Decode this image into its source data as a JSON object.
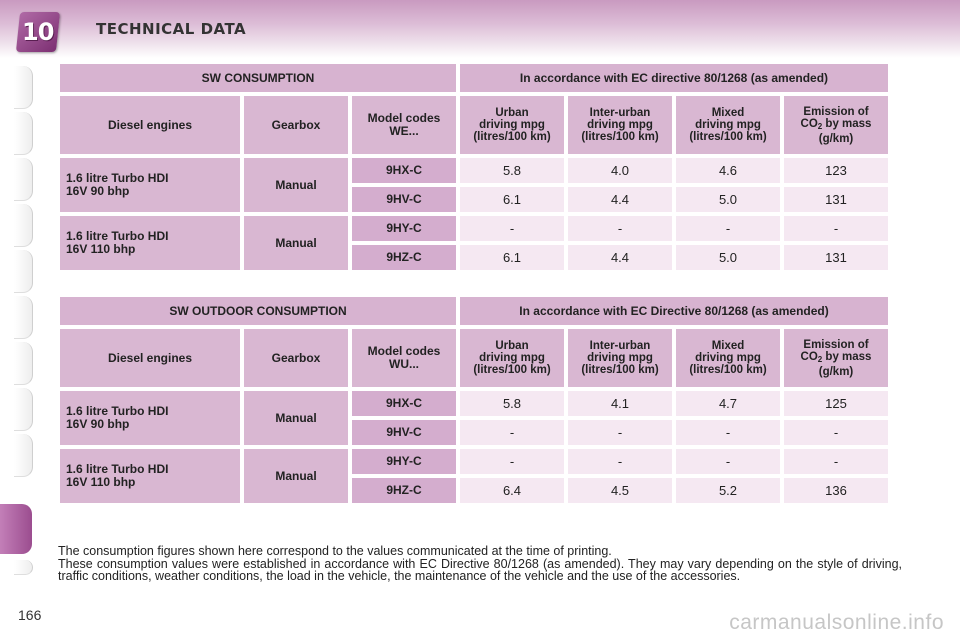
{
  "header": {
    "chapter": "10",
    "title": "TECHNICAL DATA"
  },
  "tables": [
    {
      "title": "SW CONSUMPTION",
      "directive": "In accordance with EC directive 80/1268 (as amended)",
      "columns": {
        "engine": "Diesel engines",
        "gearbox": "Gearbox",
        "codes": "Model codes WE...",
        "urban": [
          "Urban",
          "driving mpg",
          "(litres/100 km)"
        ],
        "inter": [
          "Inter-urban",
          "driving mpg",
          "(litres/100 km)"
        ],
        "mixed": [
          "Mixed",
          "driving mpg",
          "(litres/100 km)"
        ],
        "co2": [
          "Emission of",
          "CO",
          "2",
          " by mass",
          "(g/km)"
        ]
      },
      "groups": [
        {
          "engine": [
            "1.6 litre Turbo HDI",
            "16V 90 bhp"
          ],
          "gearbox": "Manual",
          "rows": [
            {
              "code": "9HX-C",
              "urban": "5.8",
              "inter": "4.0",
              "mixed": "4.6",
              "co2": "123"
            },
            {
              "code": "9HV-C",
              "urban": "6.1",
              "inter": "4.4",
              "mixed": "5.0",
              "co2": "131"
            }
          ]
        },
        {
          "engine": [
            "1.6 litre Turbo HDI",
            "16V 110 bhp"
          ],
          "gearbox": "Manual",
          "rows": [
            {
              "code": "9HY-C",
              "urban": "-",
              "inter": "-",
              "mixed": "-",
              "co2": "-"
            },
            {
              "code": "9HZ-C",
              "urban": "6.1",
              "inter": "4.4",
              "mixed": "5.0",
              "co2": "131"
            }
          ]
        }
      ]
    },
    {
      "title": "SW OUTDOOR CONSUMPTION",
      "directive": "In accordance with EC Directive 80/1268 (as amended)",
      "columns": {
        "engine": "Diesel engines",
        "gearbox": "Gearbox",
        "codes": "Model codes WU...",
        "urban": [
          "Urban",
          "driving mpg",
          "(litres/100 km)"
        ],
        "inter": [
          "Inter-urban",
          "driving mpg",
          "(litres/100 km)"
        ],
        "mixed": [
          "Mixed",
          "driving mpg",
          "(litres/100 km)"
        ],
        "co2": [
          "Emission of",
          "CO",
          "2",
          " by mass",
          "(g/km)"
        ]
      },
      "groups": [
        {
          "engine": [
            "1.6 litre Turbo HDI",
            "16V 90 bhp"
          ],
          "gearbox": "Manual",
          "rows": [
            {
              "code": "9HX-C",
              "urban": "5.8",
              "inter": "4.1",
              "mixed": "4.7",
              "co2": "125"
            },
            {
              "code": "9HV-C",
              "urban": "-",
              "inter": "-",
              "mixed": "-",
              "co2": "-"
            }
          ]
        },
        {
          "engine": [
            "1.6 litre Turbo HDI",
            "16V 110 bhp"
          ],
          "gearbox": "Manual",
          "rows": [
            {
              "code": "9HY-C",
              "urban": "-",
              "inter": "-",
              "mixed": "-",
              "co2": "-"
            },
            {
              "code": "9HZ-C",
              "urban": "6.4",
              "inter": "4.5",
              "mixed": "5.2",
              "co2": "136"
            }
          ]
        }
      ]
    }
  ],
  "note": {
    "line1": "The consumption figures shown here correspond to the values communicated at the time of printing.",
    "line2": "These consumption values were established in accordance with EC Directive 80/1268 (as amended). They may vary depending on the style of driving, traffic conditions, weather conditions, the load in the vehicle, the maintenance of the vehicle and the use of the accessories."
  },
  "page_number": "166",
  "watermark": "carmanualsonline.info"
}
